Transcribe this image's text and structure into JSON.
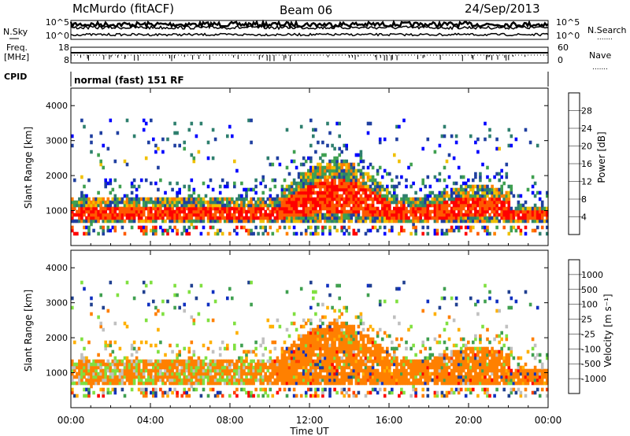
{
  "header": {
    "station": "McMurdo (fitACF)",
    "beam": "Beam 06",
    "date": "24/Sep/2013"
  },
  "left_labels": {
    "nsky": "N.Sky",
    "freq_line1": "Freq.",
    "freq_line2": "[MHz]",
    "cpid": "CPID"
  },
  "right_labels": {
    "nsearch": "N.Search",
    "nave": "Nave",
    "dots": "......."
  },
  "cpid_text": "normal (fast) 151 RF",
  "noise_panel": {
    "ticks_left": [
      "10^5",
      "10^0"
    ],
    "ticks_right": [
      "10^5",
      "10^0"
    ]
  },
  "freq_panel": {
    "ticks_left": [
      "18",
      "8"
    ],
    "ticks_right": [
      "60",
      "0"
    ]
  },
  "colors": {
    "power": [
      "#0000ff",
      "#1f3fa0",
      "#2e7f6e",
      "#3fa050",
      "#f0c000",
      "#ff8000",
      "#ff5a00",
      "#ff0000"
    ],
    "velocity": [
      "#ff0000",
      "#ff4000",
      "#ff8000",
      "#ffb000",
      "#c0c0c0",
      "#80e040",
      "#40a050",
      "#204090",
      "#1030c0"
    ]
  },
  "x_axis": {
    "label": "Time UT",
    "ticks": [
      "00:00",
      "04:00",
      "08:00",
      "12:00",
      "16:00",
      "20:00",
      "00:00"
    ]
  },
  "chart_data": [
    {
      "type": "heatmap",
      "title": "",
      "xlabel": "",
      "ylabel": "Slant Range [km]",
      "x_range_hours": [
        0,
        24
      ],
      "ylim": [
        0,
        4500
      ],
      "y_ticks": [
        "1000",
        "2000",
        "3000",
        "4000"
      ],
      "colorbar": {
        "label": "Power [dB]",
        "ticks": [
          "4",
          "8",
          "12",
          "16",
          "20",
          "24",
          "28"
        ]
      }
    },
    {
      "type": "heatmap",
      "title": "",
      "xlabel": "Time UT",
      "ylabel": "Slant Range [km]",
      "x_range_hours": [
        0,
        24
      ],
      "ylim": [
        0,
        4500
      ],
      "y_ticks": [
        "1000",
        "2000",
        "3000",
        "4000"
      ],
      "colorbar": {
        "label": "Velocity [m s⁻¹]",
        "ticks": [
          "1000",
          "500",
          "100",
          "25",
          "-25",
          "-100",
          "-500",
          "-1000"
        ]
      }
    }
  ]
}
